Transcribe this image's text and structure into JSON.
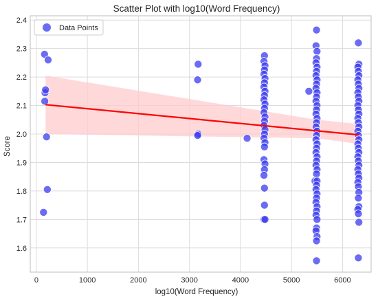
{
  "chart_data": {
    "type": "scatter",
    "title": "Scatter Plot with log10(Word Frequency)",
    "xlabel": "log10(Word Frequency)",
    "ylabel": "Score",
    "xlim": [
      -120,
      6560
    ],
    "ylim": [
      1.515,
      2.415
    ],
    "xticks": [
      0,
      1000,
      2000,
      3000,
      4000,
      5000,
      6000
    ],
    "yticks": [
      1.6,
      1.7,
      1.8,
      1.9,
      2.0,
      2.1,
      2.2,
      2.3,
      2.4
    ],
    "xtick_labels": [
      "0",
      "1000",
      "2000",
      "3000",
      "4000",
      "5000",
      "6000"
    ],
    "ytick_labels": [
      "1.6",
      "1.7",
      "1.8",
      "1.9",
      "2.0",
      "2.1",
      "2.2",
      "2.3",
      "2.4"
    ],
    "grid": true,
    "legend_position": "top-left",
    "series": [
      {
        "name": "Data Points",
        "color": "#3a3af0",
        "points": [
          [
            160,
            2.28
          ],
          [
            230,
            2.26
          ],
          [
            170,
            2.145
          ],
          [
            180,
            2.155
          ],
          [
            165,
            2.115
          ],
          [
            200,
            1.99
          ],
          [
            215,
            1.805
          ],
          [
            140,
            1.725
          ],
          [
            3170,
            2.245
          ],
          [
            3160,
            2.19
          ],
          [
            3170,
            2.0
          ],
          [
            3160,
            1.995
          ],
          [
            4130,
            1.985
          ],
          [
            4470,
            2.275
          ],
          [
            4460,
            2.255
          ],
          [
            4480,
            2.24
          ],
          [
            4470,
            2.225
          ],
          [
            4460,
            2.21
          ],
          [
            4480,
            2.195
          ],
          [
            4470,
            2.18
          ],
          [
            4460,
            2.165
          ],
          [
            4480,
            2.15
          ],
          [
            4470,
            2.135
          ],
          [
            4460,
            2.12
          ],
          [
            4480,
            2.105
          ],
          [
            4470,
            2.09
          ],
          [
            4460,
            2.075
          ],
          [
            4480,
            2.06
          ],
          [
            4470,
            2.045
          ],
          [
            4460,
            2.03
          ],
          [
            4480,
            2.015
          ],
          [
            4470,
            2.0
          ],
          [
            4460,
            1.985
          ],
          [
            4480,
            1.97
          ],
          [
            4470,
            1.955
          ],
          [
            4460,
            1.91
          ],
          [
            4480,
            1.895
          ],
          [
            4470,
            1.875
          ],
          [
            4460,
            1.855
          ],
          [
            4470,
            1.81
          ],
          [
            4470,
            1.75
          ],
          [
            4460,
            1.7
          ],
          [
            4480,
            1.7
          ],
          [
            5340,
            2.15
          ],
          [
            5490,
            2.365
          ],
          [
            5480,
            2.31
          ],
          [
            5500,
            2.29
          ],
          [
            5490,
            2.265
          ],
          [
            5480,
            2.25
          ],
          [
            5500,
            2.235
          ],
          [
            5490,
            2.22
          ],
          [
            5480,
            2.205
          ],
          [
            5500,
            2.19
          ],
          [
            5490,
            2.175
          ],
          [
            5480,
            2.16
          ],
          [
            5500,
            2.145
          ],
          [
            5490,
            2.13
          ],
          [
            5480,
            2.115
          ],
          [
            5500,
            2.1
          ],
          [
            5490,
            2.085
          ],
          [
            5480,
            2.07
          ],
          [
            5500,
            2.055
          ],
          [
            5490,
            2.04
          ],
          [
            5480,
            2.025
          ],
          [
            5500,
            2.01
          ],
          [
            5490,
            1.995
          ],
          [
            5480,
            1.98
          ],
          [
            5500,
            1.965
          ],
          [
            5490,
            1.95
          ],
          [
            5480,
            1.935
          ],
          [
            5500,
            1.92
          ],
          [
            5490,
            1.905
          ],
          [
            5480,
            1.89
          ],
          [
            5500,
            1.875
          ],
          [
            5490,
            1.86
          ],
          [
            5460,
            1.835
          ],
          [
            5500,
            1.835
          ],
          [
            5490,
            1.82
          ],
          [
            5480,
            1.805
          ],
          [
            5500,
            1.79
          ],
          [
            5490,
            1.775
          ],
          [
            5480,
            1.76
          ],
          [
            5500,
            1.745
          ],
          [
            5490,
            1.73
          ],
          [
            5480,
            1.715
          ],
          [
            5500,
            1.7
          ],
          [
            5490,
            1.67
          ],
          [
            5480,
            1.66
          ],
          [
            5500,
            1.64
          ],
          [
            5490,
            1.625
          ],
          [
            5490,
            1.555
          ],
          [
            6310,
            2.32
          ],
          [
            6320,
            2.245
          ],
          [
            6300,
            2.235
          ],
          [
            6310,
            2.22
          ],
          [
            6320,
            2.205
          ],
          [
            6300,
            2.19
          ],
          [
            6310,
            2.175
          ],
          [
            6320,
            2.16
          ],
          [
            6300,
            2.145
          ],
          [
            6310,
            2.13
          ],
          [
            6320,
            2.115
          ],
          [
            6300,
            2.1
          ],
          [
            6310,
            2.085
          ],
          [
            6320,
            2.07
          ],
          [
            6300,
            2.055
          ],
          [
            6310,
            2.04
          ],
          [
            6320,
            2.025
          ],
          [
            6300,
            2.01
          ],
          [
            6310,
            1.995
          ],
          [
            6320,
            1.98
          ],
          [
            6300,
            1.965
          ],
          [
            6310,
            1.95
          ],
          [
            6320,
            1.935
          ],
          [
            6300,
            1.92
          ],
          [
            6310,
            1.905
          ],
          [
            6320,
            1.89
          ],
          [
            6300,
            1.875
          ],
          [
            6310,
            1.86
          ],
          [
            6320,
            1.845
          ],
          [
            6300,
            1.83
          ],
          [
            6310,
            1.815
          ],
          [
            6320,
            1.795
          ],
          [
            6310,
            1.775
          ],
          [
            6320,
            1.745
          ],
          [
            6300,
            1.735
          ],
          [
            6310,
            1.72
          ],
          [
            6320,
            1.69
          ],
          [
            6310,
            1.565
          ]
        ]
      }
    ],
    "regression": {
      "color": "#ff0000",
      "band_color": "#ffcccc",
      "line": [
        [
          180,
          2.103
        ],
        [
          6320,
          1.997
        ]
      ],
      "band_upper": [
        [
          180,
          2.205
        ],
        [
          5500,
          2.05
        ],
        [
          6320,
          2.035
        ]
      ],
      "band_lower": [
        [
          180,
          2.0
        ],
        [
          5500,
          1.985
        ],
        [
          6320,
          1.965
        ]
      ]
    }
  }
}
